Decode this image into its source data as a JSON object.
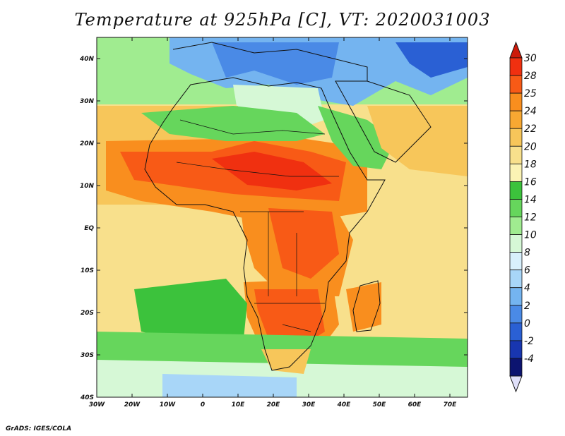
{
  "title": "Temperature at 925hPa [C], VT: 2020031003",
  "credit": "GrADS: IGES/COLA",
  "map": {
    "projection": "lat-lon",
    "lon_range": [
      -30,
      75
    ],
    "lat_range": [
      -40,
      45
    ],
    "lon_ticks": [
      {
        "value": -30,
        "label": "30W"
      },
      {
        "value": -20,
        "label": "20W"
      },
      {
        "value": -10,
        "label": "10W"
      },
      {
        "value": 0,
        "label": "0"
      },
      {
        "value": 10,
        "label": "10E"
      },
      {
        "value": 20,
        "label": "20E"
      },
      {
        "value": 30,
        "label": "30E"
      },
      {
        "value": 40,
        "label": "40E"
      },
      {
        "value": 50,
        "label": "50E"
      },
      {
        "value": 60,
        "label": "60E"
      },
      {
        "value": 70,
        "label": "70E"
      }
    ],
    "lat_ticks": [
      {
        "value": 40,
        "label": "40N"
      },
      {
        "value": 30,
        "label": "30N"
      },
      {
        "value": 20,
        "label": "20N"
      },
      {
        "value": 10,
        "label": "10N"
      },
      {
        "value": 0,
        "label": "EQ"
      },
      {
        "value": -10,
        "label": "10S"
      },
      {
        "value": -20,
        "label": "20S"
      },
      {
        "value": -30,
        "label": "30S"
      },
      {
        "value": -40,
        "label": "40S"
      }
    ]
  },
  "colorbar": {
    "levels": [
      "30",
      "28",
      "25",
      "24",
      "22",
      "20",
      "18",
      "16",
      "14",
      "12",
      "10",
      "8",
      "6",
      "4",
      "2",
      "0",
      "-2",
      "-4"
    ],
    "colors": [
      "#f03010",
      "#f85a16",
      "#f98e1e",
      "#f8a832",
      "#f7c65a",
      "#f8e08c",
      "#fbf3b4",
      "#3cc23c",
      "#66d65c",
      "#a0ec90",
      "#d6f8d6",
      "#d8f0fc",
      "#a8d6f8",
      "#74b4f0",
      "#4a8ae6",
      "#2a60d4",
      "#1836b0",
      "#0c1470"
    ],
    "top_arrow_color": "#cc1a0a",
    "bottom_arrow_color": "#e0e0fa"
  }
}
